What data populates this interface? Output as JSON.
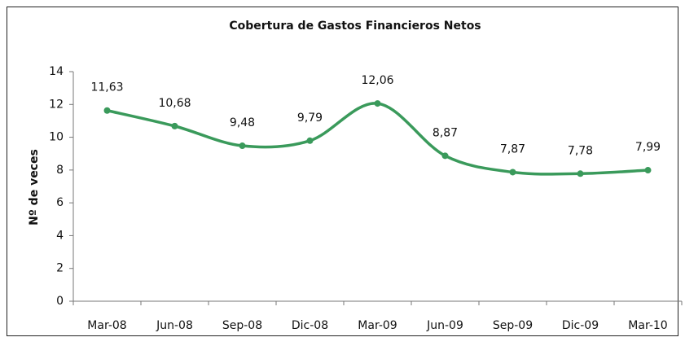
{
  "chart_data": {
    "type": "line",
    "title": "Cobertura de Gastos Financieros Netos",
    "y_label": "Nº de veces",
    "categories": [
      "Mar-08",
      "Jun-08",
      "Sep-08",
      "Dic-08",
      "Mar-09",
      "Jun-09",
      "Sep-09",
      "Dic-09",
      "Mar-10"
    ],
    "values": [
      11.63,
      10.68,
      9.48,
      9.79,
      12.06,
      8.87,
      7.87,
      7.78,
      7.99
    ],
    "value_labels": [
      "11,63",
      "10,68",
      "9,48",
      "9,79",
      "12,06",
      "8,87",
      "7,87",
      "7,78",
      "7,99"
    ],
    "color": "#3a9a5b",
    "smooth": true,
    "ylim": [
      0,
      14
    ],
    "yticks": [
      0,
      2,
      4,
      6,
      8,
      10,
      12,
      14
    ]
  }
}
